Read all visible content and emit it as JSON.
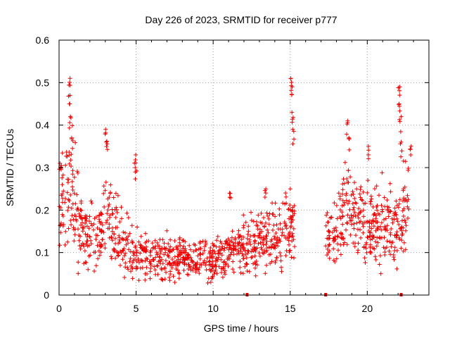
{
  "chart_data": {
    "type": "scatter",
    "title": "Day 226 of 2023, SRMTID for receiver p777",
    "xlabel": "GPS time / hours",
    "ylabel": "SRMTID / TECUs",
    "xlim": [
      0,
      24
    ],
    "ylim": [
      0,
      0.6
    ],
    "x_ticks": [
      0,
      5,
      10,
      15,
      20
    ],
    "x_tick_labels": [
      "0",
      "5",
      "10",
      "15",
      "20"
    ],
    "y_ticks": [
      0,
      0.1,
      0.2,
      0.3,
      0.4,
      0.5,
      0.6
    ],
    "y_tick_labels": [
      "0",
      "0.1",
      "0.2",
      "0.3",
      "0.4",
      "0.5",
      "0.6"
    ],
    "grid": true,
    "marker": "plus",
    "series_color": "#ee0000",
    "data_gap_hours": [
      15.3,
      17.3
    ],
    "trend": [
      {
        "x": 0.0,
        "y": 0.22
      },
      {
        "x": 0.5,
        "y": 0.24
      },
      {
        "x": 0.8,
        "y": 0.25
      },
      {
        "x": 1.2,
        "y": 0.18
      },
      {
        "x": 2.0,
        "y": 0.15
      },
      {
        "x": 2.5,
        "y": 0.13
      },
      {
        "x": 3.0,
        "y": 0.19
      },
      {
        "x": 3.5,
        "y": 0.17
      },
      {
        "x": 4.0,
        "y": 0.14
      },
      {
        "x": 5.0,
        "y": 0.1
      },
      {
        "x": 6.0,
        "y": 0.09
      },
      {
        "x": 7.0,
        "y": 0.09
      },
      {
        "x": 8.0,
        "y": 0.085
      },
      {
        "x": 9.0,
        "y": 0.09
      },
      {
        "x": 10.0,
        "y": 0.08
      },
      {
        "x": 11.0,
        "y": 0.1
      },
      {
        "x": 12.0,
        "y": 0.11
      },
      {
        "x": 13.0,
        "y": 0.13
      },
      {
        "x": 14.0,
        "y": 0.13
      },
      {
        "x": 15.0,
        "y": 0.16
      },
      {
        "x": 17.4,
        "y": 0.13
      },
      {
        "x": 18.0,
        "y": 0.18
      },
      {
        "x": 18.5,
        "y": 0.21
      },
      {
        "x": 19.0,
        "y": 0.2
      },
      {
        "x": 20.0,
        "y": 0.16
      },
      {
        "x": 21.0,
        "y": 0.17
      },
      {
        "x": 22.0,
        "y": 0.15
      },
      {
        "x": 22.7,
        "y": 0.23
      }
    ],
    "peaks": [
      {
        "x": 0.1,
        "y": 0.31
      },
      {
        "x": 0.65,
        "y": 0.47
      },
      {
        "x": 0.7,
        "y": 0.51
      },
      {
        "x": 0.72,
        "y": 0.42
      },
      {
        "x": 0.85,
        "y": 0.37
      },
      {
        "x": 3.05,
        "y": 0.39
      },
      {
        "x": 3.1,
        "y": 0.36
      },
      {
        "x": 4.95,
        "y": 0.33
      },
      {
        "x": 5.0,
        "y": 0.3
      },
      {
        "x": 15.05,
        "y": 0.51
      },
      {
        "x": 15.1,
        "y": 0.49
      },
      {
        "x": 15.15,
        "y": 0.43
      },
      {
        "x": 15.2,
        "y": 0.39
      },
      {
        "x": 18.7,
        "y": 0.41
      },
      {
        "x": 18.8,
        "y": 0.37
      },
      {
        "x": 20.1,
        "y": 0.35
      },
      {
        "x": 22.05,
        "y": 0.49
      },
      {
        "x": 22.1,
        "y": 0.45
      },
      {
        "x": 22.15,
        "y": 0.42
      },
      {
        "x": 22.2,
        "y": 0.36
      },
      {
        "x": 22.8,
        "y": 0.35
      },
      {
        "x": 11.1,
        "y": 0.24
      },
      {
        "x": 13.4,
        "y": 0.25
      }
    ],
    "zero_points": [
      {
        "x": 12.2,
        "y": 0.0
      },
      {
        "x": 17.3,
        "y": 0.0
      },
      {
        "x": 22.2,
        "y": 0.0
      }
    ],
    "approx_point_count": 1400
  }
}
